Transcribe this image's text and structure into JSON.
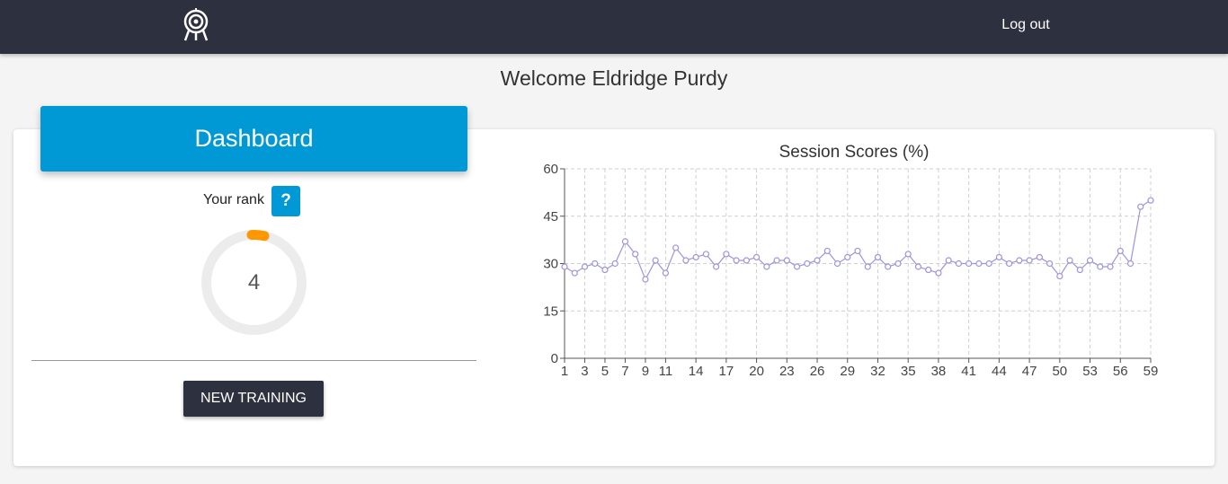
{
  "navbar": {
    "logout_label": "Log out"
  },
  "welcome": {
    "text": "Welcome Eldridge Purdy"
  },
  "dashboard": {
    "title": "Dashboard",
    "rank_label": "Your rank",
    "help_label": "?",
    "rank_value": "4",
    "new_training_label": "NEW TRAINING"
  },
  "colors": {
    "navbar": "#2d313f",
    "accent": "#0099d6",
    "gauge_track": "#ececec",
    "gauge_arc": "#ff9800",
    "series": "#9b94e0"
  },
  "chart_data": {
    "type": "line",
    "title": "Session Scores (%)",
    "xlabel": "",
    "ylabel": "",
    "xlim": [
      1,
      59
    ],
    "ylim": [
      0,
      60
    ],
    "y_ticks": [
      0,
      15,
      30,
      45,
      60
    ],
    "x_ticks": [
      1,
      3,
      5,
      7,
      9,
      11,
      14,
      17,
      20,
      23,
      26,
      29,
      32,
      35,
      38,
      41,
      44,
      47,
      50,
      53,
      56,
      59
    ],
    "grid": true,
    "legend": false,
    "series": [
      {
        "values": [
          29,
          27,
          29,
          30,
          28,
          30,
          37,
          33,
          25,
          31,
          27,
          35,
          31,
          32,
          33,
          29,
          33,
          31,
          31,
          32,
          29,
          31,
          31,
          29,
          30,
          31,
          34,
          30,
          32,
          34,
          29,
          32,
          29,
          30,
          33,
          29,
          28,
          27,
          31,
          30,
          30,
          30,
          30,
          32,
          30,
          31,
          31,
          32,
          30,
          26,
          31,
          28,
          31,
          29,
          29,
          34,
          30,
          48,
          50
        ]
      }
    ]
  }
}
